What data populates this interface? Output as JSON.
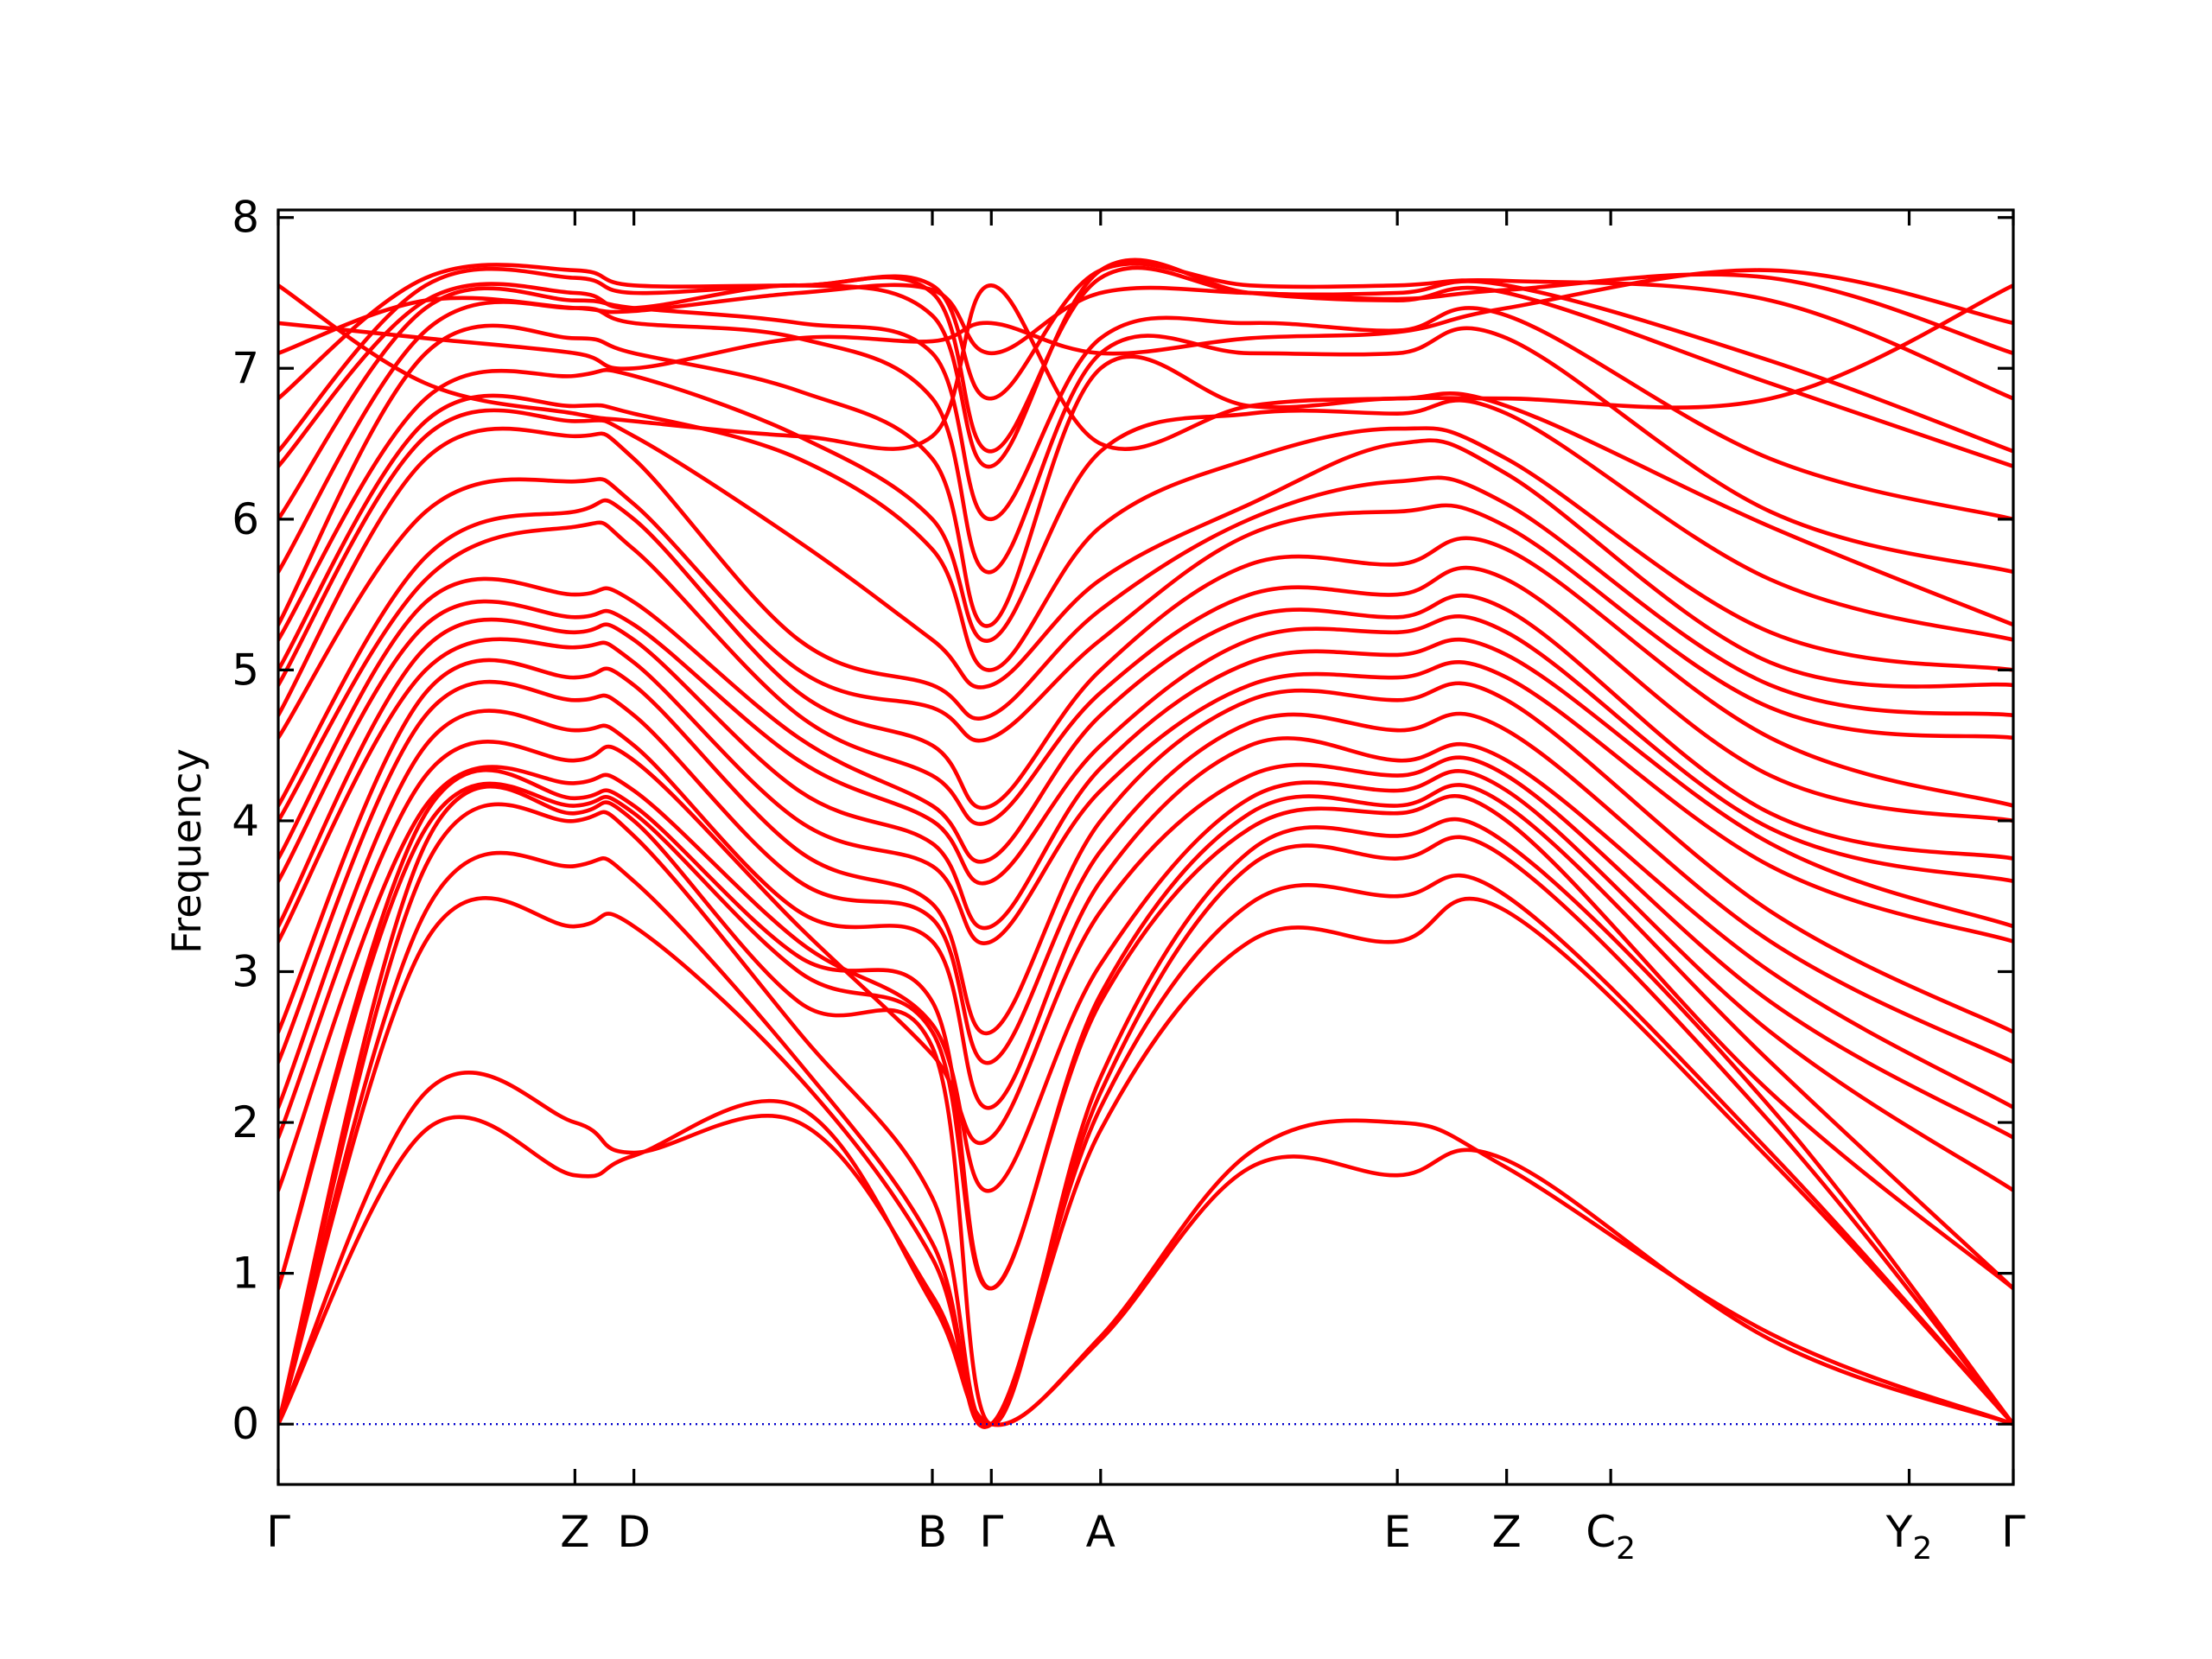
{
  "chart_data": {
    "type": "line",
    "ylabel": "Frequency",
    "xlabel": "",
    "ylim": [
      -0.4,
      8.05
    ],
    "yticks": [
      0,
      1,
      2,
      3,
      4,
      5,
      6,
      7,
      8
    ],
    "grid": false,
    "legend": "none",
    "line_color": "#ff0000",
    "zero_line_color": "#0000cc",
    "x_range": [
      0,
      1
    ],
    "high_points": [
      {
        "label": "Γ",
        "sub": "",
        "x": 0.0
      },
      {
        "label": "Z",
        "sub": "",
        "x": 0.171
      },
      {
        "label": "D",
        "sub": "",
        "x": 0.205
      },
      {
        "label": "B",
        "sub": "",
        "x": 0.377
      },
      {
        "label": "Γ",
        "sub": "",
        "x": 0.411
      },
      {
        "label": "A",
        "sub": "",
        "x": 0.474
      },
      {
        "label": "E",
        "sub": "",
        "x": 0.645
      },
      {
        "label": "Z",
        "sub": "",
        "x": 0.708
      },
      {
        "label": "C",
        "sub": "2",
        "x": 0.768
      },
      {
        "label": "Y",
        "sub": "2",
        "x": 0.94
      },
      {
        "label": "Γ",
        "sub": "",
        "x": 1.0
      }
    ],
    "series": [
      {
        "values": [
          0.0,
          1.95,
          1.65,
          1.78,
          2.1,
          0.8,
          0.0,
          0.56,
          1.7,
          1.65,
          1.75,
          0.56,
          0.0
        ]
      },
      {
        "values": [
          0.0,
          2.2,
          2.0,
          1.8,
          2.0,
          0.85,
          0.0,
          0.58,
          1.8,
          2.0,
          1.7,
          0.6,
          0.0
        ]
      },
      {
        "values": [
          0.0,
          3.2,
          3.3,
          3.3,
          2.3,
          1.1,
          0.0,
          1.95,
          3.2,
          3.2,
          3.4,
          1.75,
          0.0
        ]
      },
      {
        "values": [
          0.0,
          3.4,
          3.7,
          3.6,
          2.4,
          1.2,
          0.0,
          2.1,
          3.45,
          3.5,
          3.5,
          1.8,
          0.0
        ]
      },
      {
        "values": [
          0.0,
          3.7,
          4.0,
          3.9,
          2.6,
          1.5,
          0.0,
          2.2,
          3.7,
          3.75,
          3.75,
          2.0,
          0.0
        ]
      },
      {
        "values": [
          0.0,
          3.85,
          4.05,
          4.0,
          2.8,
          2.5,
          0.0,
          2.3,
          3.8,
          3.9,
          3.85,
          2.1,
          0.0
        ]
      },
      {
        "values": [
          0.9,
          3.95,
          4.1,
          4.05,
          3.0,
          2.6,
          0.9,
          2.8,
          3.95,
          4.05,
          4.0,
          2.2,
          0.9
        ]
      },
      {
        "values": [
          0.9,
          4.05,
          4.15,
          4.1,
          3.1,
          2.8,
          0.9,
          2.85,
          4.05,
          4.1,
          4.1,
          2.4,
          0.9
        ]
      },
      {
        "values": [
          1.55,
          4.1,
          4.25,
          4.2,
          3.2,
          2.65,
          1.55,
          3.05,
          4.15,
          4.2,
          4.2,
          2.6,
          1.55
        ]
      },
      {
        "values": [
          1.9,
          4.3,
          4.4,
          4.4,
          3.3,
          2.45,
          1.9,
          3.4,
          4.3,
          4.3,
          4.3,
          2.8,
          1.9
        ]
      },
      {
        "values": [
          2.1,
          4.5,
          4.6,
          4.5,
          3.4,
          3.2,
          2.1,
          3.6,
          4.5,
          4.4,
          4.4,
          3.0,
          2.1
        ]
      },
      {
        "values": [
          2.4,
          4.7,
          4.8,
          4.7,
          3.6,
          3.35,
          2.4,
          3.8,
          4.65,
          4.6,
          4.6,
          3.2,
          2.4
        ]
      },
      {
        "values": [
          2.6,
          4.85,
          4.95,
          4.9,
          3.8,
          3.45,
          2.6,
          4.0,
          4.8,
          4.8,
          4.8,
          3.4,
          2.6
        ]
      },
      {
        "values": [
          3.2,
          5.0,
          5.15,
          5.05,
          4.0,
          3.7,
          3.2,
          4.2,
          4.9,
          4.95,
          4.95,
          3.7,
          3.2
        ]
      },
      {
        "values": [
          3.3,
          5.15,
          5.25,
          5.2,
          4.2,
          3.85,
          3.3,
          4.35,
          5.05,
          5.1,
          5.1,
          3.85,
          3.3
        ]
      },
      {
        "values": [
          3.6,
          5.3,
          5.35,
          5.3,
          4.4,
          4.0,
          3.6,
          4.5,
          5.2,
          5.25,
          5.25,
          3.95,
          3.6
        ]
      },
      {
        "values": [
          3.75,
          5.45,
          5.5,
          5.45,
          4.55,
          4.1,
          3.75,
          4.7,
          5.35,
          5.35,
          5.4,
          4.05,
          3.75
        ]
      },
      {
        "values": [
          4.0,
          5.6,
          5.95,
          5.8,
          4.7,
          4.3,
          4.0,
          4.85,
          5.5,
          5.5,
          5.6,
          4.3,
          4.0
        ]
      },
      {
        "values": [
          4.1,
          5.75,
          6.05,
          6.0,
          4.85,
          4.5,
          4.1,
          5.0,
          5.7,
          5.7,
          5.8,
          4.55,
          4.1
        ]
      },
      {
        "values": [
          4.55,
          6.05,
          6.25,
          6.1,
          5.0,
          4.75,
          4.55,
          5.2,
          5.9,
          6.05,
          5.95,
          4.75,
          4.55
        ]
      },
      {
        "values": [
          4.7,
          6.4,
          6.55,
          6.4,
          5.2,
          4.9,
          4.7,
          5.4,
          6.0,
          6.25,
          6.1,
          4.9,
          4.7
        ]
      },
      {
        "values": [
          4.9,
          6.55,
          6.65,
          6.55,
          5.85,
          5.2,
          4.9,
          5.6,
          6.1,
          6.5,
          6.3,
          5.05,
          4.9
        ]
      },
      {
        "values": [
          5.0,
          6.65,
          6.75,
          6.7,
          6.4,
          5.8,
          5.0,
          5.95,
          6.4,
          6.6,
          6.4,
          5.25,
          5.0
        ]
      },
      {
        "values": [
          5.2,
          6.8,
          6.95,
          6.95,
          6.55,
          6.0,
          5.2,
          6.45,
          6.7,
          6.7,
          6.7,
          5.6,
          5.2
        ]
      },
      {
        "values": [
          5.3,
          7.1,
          7.2,
          7.1,
          6.85,
          6.4,
          5.3,
          7.0,
          6.75,
          6.8,
          6.75,
          5.95,
          5.3
        ]
      },
      {
        "values": [
          5.65,
          7.25,
          7.4,
          7.3,
          7.2,
          6.8,
          5.65,
          7.1,
          7.1,
          7.1,
          7.2,
          6.05,
          5.65
        ]
      },
      {
        "values": [
          6.0,
          7.4,
          7.45,
          7.4,
          7.3,
          7.1,
          6.0,
          7.2,
          7.3,
          7.25,
          7.35,
          6.4,
          6.0
        ]
      },
      {
        "values": [
          6.35,
          7.45,
          7.5,
          7.4,
          7.55,
          7.35,
          6.35,
          7.65,
          7.5,
          7.45,
          7.5,
          6.9,
          6.35
        ]
      },
      {
        "values": [
          6.45,
          7.55,
          7.6,
          7.5,
          7.55,
          7.5,
          6.45,
          7.6,
          7.5,
          7.5,
          7.55,
          7.05,
          6.45
        ]
      },
      {
        "values": [
          6.8,
          7.6,
          7.65,
          7.55,
          7.55,
          7.55,
          6.8,
          7.65,
          7.55,
          7.55,
          7.58,
          7.45,
          6.8
        ]
      },
      {
        "values": [
          7.1,
          7.45,
          7.4,
          7.38,
          7.5,
          7.52,
          7.1,
          7.5,
          7.5,
          7.46,
          7.52,
          7.6,
          7.1
        ]
      },
      {
        "values": [
          7.3,
          7.2,
          7.1,
          7.0,
          7.2,
          7.18,
          7.3,
          7.1,
          7.2,
          7.24,
          7.4,
          7.65,
          7.3
        ]
      },
      {
        "values": [
          7.55,
          6.9,
          6.7,
          6.65,
          6.55,
          6.55,
          7.55,
          6.5,
          6.75,
          6.8,
          6.8,
          6.8,
          7.55
        ]
      }
    ],
    "series_x": [
      0.0,
      0.085,
      0.171,
      0.205,
      0.3,
      0.377,
      0.411,
      0.474,
      0.56,
      0.645,
      0.708,
      0.86,
      1.0
    ]
  }
}
